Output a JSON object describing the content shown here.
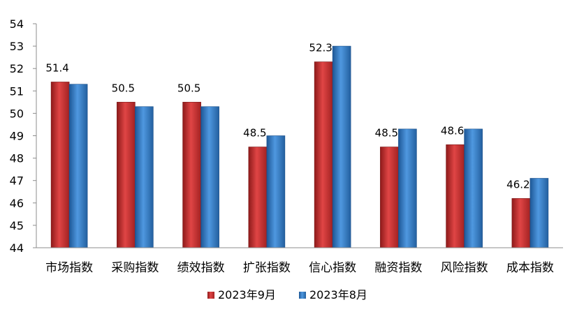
{
  "chart_data": {
    "type": "bar",
    "categories": [
      "市场指数",
      "采购指数",
      "绩效指数",
      "扩张指数",
      "信心指数",
      "融资指数",
      "风险指数",
      "成本指数"
    ],
    "series": [
      {
        "name": "2023年9月",
        "values": [
          51.4,
          50.5,
          50.5,
          48.5,
          52.3,
          48.5,
          48.6,
          46.2
        ],
        "data_labels": [
          "51.4",
          "50.5",
          "50.5",
          "48.5",
          "52.3",
          "48.5",
          "48.6",
          "46.2"
        ],
        "color": "#c0302f"
      },
      {
        "name": "2023年8月",
        "values": [
          51.3,
          50.3,
          50.3,
          49.0,
          53.0,
          49.3,
          49.3,
          47.1
        ],
        "color": "#2f78c4"
      }
    ],
    "y_ticks": [
      "44",
      "45",
      "46",
      "47",
      "48",
      "49",
      "50",
      "51",
      "52",
      "53",
      "54"
    ],
    "ylim": [
      44,
      54
    ],
    "grid": false,
    "legend_position": "bottom"
  }
}
